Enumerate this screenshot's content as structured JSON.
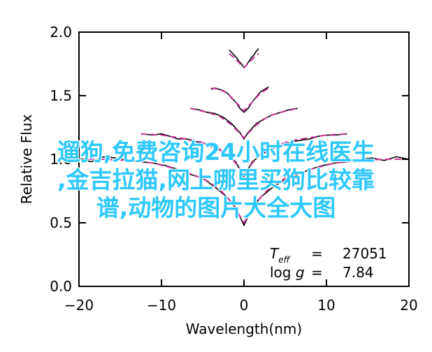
{
  "chart_data": {
    "type": "line",
    "title": "",
    "xlabel": "Wavelength(nm)",
    "ylabel": "Relative Flux",
    "xlim": [
      -20,
      20
    ],
    "ylim": [
      0.0,
      2.0
    ],
    "xticks": [
      "−20",
      "−10",
      "0",
      "10",
      "20"
    ],
    "xtick_values": [
      -20,
      -10,
      0,
      10,
      20
    ],
    "yticks": [
      "0.0",
      "0.5",
      "1.0",
      "1.5",
      "2.0"
    ],
    "ytick_values": [
      0.0,
      0.5,
      1.0,
      1.5,
      2.0
    ],
    "grid": false,
    "line_colors": {
      "observed": "#000000",
      "model": "#cc3399"
    },
    "series": [
      {
        "style": "observed",
        "x": [
          -20.0,
          -18.5,
          -17.0,
          -15.5,
          -14.0,
          -12.5,
          -11.0,
          -9.5,
          -8.0,
          -6.5,
          -5.0,
          -3.5,
          -2.0,
          -1.0,
          0.0,
          1.0,
          2.0,
          3.5,
          5.0,
          6.5,
          8.0,
          9.5,
          11.0,
          12.5,
          14.0,
          15.5,
          17.0,
          18.5,
          20.0
        ],
        "y": [
          1.0,
          0.98,
          1.02,
          1.01,
          0.99,
          0.98,
          0.97,
          0.95,
          0.92,
          0.88,
          0.85,
          0.78,
          0.7,
          0.62,
          0.48,
          0.62,
          0.7,
          0.78,
          0.84,
          0.88,
          0.92,
          0.95,
          0.97,
          0.98,
          1.0,
          1.01,
          0.99,
          1.02,
          1.0
        ]
      },
      {
        "style": "model",
        "x": [
          -20.0,
          -17.0,
          -14.0,
          -11.0,
          -8.0,
          -5.0,
          -3.0,
          -1.5,
          0.0,
          1.5,
          3.0,
          5.0,
          8.0,
          11.0,
          14.0,
          17.0,
          20.0
        ],
        "y": [
          1.0,
          1.0,
          0.99,
          0.97,
          0.92,
          0.85,
          0.77,
          0.66,
          0.5,
          0.66,
          0.77,
          0.85,
          0.92,
          0.97,
          0.99,
          1.0,
          1.0
        ]
      },
      {
        "style": "observed",
        "x": [
          -12.5,
          -11.0,
          -10.0,
          -9.0,
          -8.0,
          -7.0,
          -6.0,
          -5.0,
          -4.0,
          -3.0,
          -2.0,
          -1.0,
          0.0,
          1.0,
          2.0,
          3.0,
          4.0,
          5.0,
          6.0,
          7.0,
          8.0,
          9.0,
          10.0,
          11.0,
          12.5
        ],
        "y": [
          1.2,
          1.19,
          1.2,
          1.18,
          1.16,
          1.16,
          1.14,
          1.13,
          1.1,
          1.08,
          1.03,
          0.98,
          0.86,
          0.98,
          1.03,
          1.07,
          1.1,
          1.12,
          1.14,
          1.15,
          1.16,
          1.18,
          1.19,
          1.19,
          1.2
        ]
      },
      {
        "style": "model",
        "x": [
          -12.5,
          -10.0,
          -8.0,
          -6.0,
          -4.0,
          -2.0,
          -1.0,
          0.0,
          1.0,
          2.0,
          4.0,
          6.0,
          8.0,
          10.0,
          12.5
        ],
        "y": [
          1.2,
          1.19,
          1.17,
          1.15,
          1.11,
          1.04,
          0.97,
          0.88,
          0.97,
          1.04,
          1.11,
          1.15,
          1.17,
          1.19,
          1.2
        ]
      },
      {
        "style": "observed",
        "x": [
          -6.5,
          -5.5,
          -4.5,
          -3.5,
          -2.5,
          -1.5,
          -0.5,
          0.0,
          0.5,
          1.5,
          2.5,
          3.5,
          4.5,
          5.5,
          6.5
        ],
        "y": [
          1.4,
          1.39,
          1.37,
          1.36,
          1.33,
          1.28,
          1.21,
          1.16,
          1.21,
          1.28,
          1.32,
          1.35,
          1.37,
          1.39,
          1.4
        ]
      },
      {
        "style": "model",
        "x": [
          -6.5,
          -4.5,
          -3.0,
          -1.5,
          0.0,
          1.5,
          3.0,
          4.5,
          6.5
        ],
        "y": [
          1.4,
          1.37,
          1.34,
          1.27,
          1.17,
          1.27,
          1.34,
          1.37,
          1.4
        ]
      },
      {
        "style": "observed",
        "x": [
          -4.0,
          -3.5,
          -3.0,
          -2.5,
          -2.0,
          -1.5,
          -1.0,
          -0.5,
          0.0,
          0.5,
          1.0,
          1.5,
          2.0,
          2.5,
          3.0
        ],
        "y": [
          1.55,
          1.56,
          1.55,
          1.54,
          1.52,
          1.48,
          1.45,
          1.4,
          1.37,
          1.4,
          1.45,
          1.49,
          1.53,
          1.55,
          1.57
        ]
      },
      {
        "style": "model",
        "x": [
          -4.0,
          -3.0,
          -2.0,
          -1.0,
          0.0,
          1.0,
          2.0,
          3.0
        ],
        "y": [
          1.56,
          1.55,
          1.52,
          1.45,
          1.38,
          1.45,
          1.52,
          1.56
        ]
      },
      {
        "style": "observed",
        "x": [
          -1.8,
          -1.5,
          -1.2,
          -0.9,
          -0.6,
          -0.3,
          0.0,
          0.3,
          0.6,
          0.9,
          1.2,
          1.5,
          1.8
        ],
        "y": [
          1.86,
          1.84,
          1.82,
          1.8,
          1.77,
          1.75,
          1.72,
          1.74,
          1.77,
          1.8,
          1.82,
          1.85,
          1.87
        ]
      },
      {
        "style": "model",
        "x": [
          -1.8,
          -1.2,
          -0.6,
          0.0,
          0.6,
          1.2,
          1.8
        ],
        "y": [
          1.83,
          1.8,
          1.76,
          1.72,
          1.76,
          1.8,
          1.83
        ]
      }
    ],
    "annotation": {
      "teff_label": "T",
      "teff_sub": "eff",
      "teff_eq": "=",
      "teff_value": "27051",
      "logg_label": "log ",
      "logg_g": "g",
      "logg_eq": "=",
      "logg_value": "7.84"
    }
  },
  "overlay": {
    "color": "#2ec8ff",
    "lines": [
      "遛狗,免费咨询24小时在线医生",
      ",金吉拉猫,网上哪里买狗比较靠",
      "谱,动物的图片大全大图"
    ]
  }
}
